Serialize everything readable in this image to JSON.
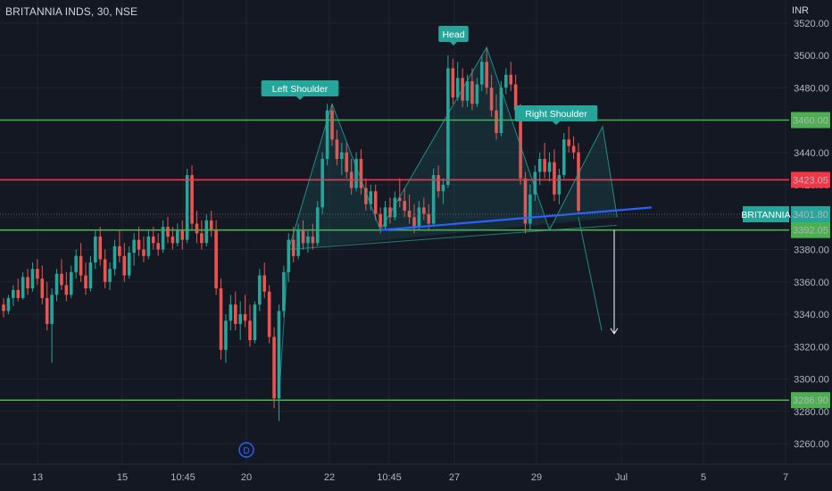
{
  "header": {
    "title": "BRITANNIA INDS, 30, NSE",
    "currency": "INR"
  },
  "colors": {
    "background": "#141823",
    "grid": "#1f2430",
    "up": "#26a69a",
    "down": "#ef5350",
    "support": "#4caf50",
    "resistance": "#f23645",
    "trendline": "#2962ff",
    "pattern": "#26a69a",
    "projection": "#ffffff"
  },
  "chart_data": {
    "type": "candlestick",
    "y_axis": {
      "min": 3250,
      "max": 3525,
      "tick_labels": [
        "3520.00",
        "3500.00",
        "3480.00",
        "3460.00",
        "3440.00",
        "3420.00",
        "3400.00",
        "3380.00",
        "3360.00",
        "3340.00",
        "3320.00",
        "3300.00",
        "3280.00",
        "3260.00"
      ]
    },
    "x_axis": {
      "tick_labels": [
        "13",
        "15",
        "10:45",
        "20",
        "22",
        "10:45",
        "27",
        "29",
        "Jul",
        "5",
        "7"
      ]
    },
    "grid": true,
    "horizontal_levels": [
      {
        "price": 3460.0,
        "label": "3460.00",
        "kind": "support"
      },
      {
        "price": 3423.05,
        "label": "3423.05",
        "kind": "resistance"
      },
      {
        "price": 3392.05,
        "label": "3392.05",
        "kind": "support"
      },
      {
        "price": 3286.9,
        "label": "3286.90",
        "kind": "support"
      }
    ],
    "last_price": {
      "symbol": "BRITANNIA",
      "value": "3401.80",
      "price": 3401.8
    },
    "pattern": {
      "name": "head-and-shoulders",
      "points": [
        {
          "label": "Left Shoulder",
          "price": 3470
        },
        {
          "label": "Head",
          "price": 3505
        },
        {
          "label": "Right Shoulder",
          "price": 3456
        }
      ]
    },
    "neckline": {
      "from_price": 3392,
      "to_price": 3406
    },
    "projection_target": 3328,
    "marker": "D",
    "candles_ohlc": [
      [
        3346,
        3350,
        3338,
        3342
      ],
      [
        3342,
        3352,
        3340,
        3350
      ],
      [
        3350,
        3358,
        3345,
        3355
      ],
      [
        3355,
        3362,
        3348,
        3350
      ],
      [
        3350,
        3366,
        3349,
        3363
      ],
      [
        3363,
        3368,
        3352,
        3356
      ],
      [
        3356,
        3372,
        3354,
        3368
      ],
      [
        3368,
        3374,
        3358,
        3362
      ],
      [
        3362,
        3370,
        3346,
        3350
      ],
      [
        3350,
        3360,
        3330,
        3334
      ],
      [
        3334,
        3356,
        3310,
        3352
      ],
      [
        3352,
        3368,
        3348,
        3365
      ],
      [
        3365,
        3374,
        3355,
        3358
      ],
      [
        3358,
        3366,
        3348,
        3352
      ],
      [
        3352,
        3370,
        3350,
        3366
      ],
      [
        3366,
        3380,
        3362,
        3376
      ],
      [
        3376,
        3384,
        3360,
        3364
      ],
      [
        3364,
        3372,
        3352,
        3356
      ],
      [
        3356,
        3376,
        3354,
        3372
      ],
      [
        3372,
        3392,
        3368,
        3388
      ],
      [
        3388,
        3394,
        3370,
        3374
      ],
      [
        3374,
        3380,
        3356,
        3360
      ],
      [
        3360,
        3372,
        3355,
        3368
      ],
      [
        3368,
        3386,
        3364,
        3382
      ],
      [
        3382,
        3392,
        3372,
        3376
      ],
      [
        3376,
        3384,
        3360,
        3364
      ],
      [
        3364,
        3382,
        3362,
        3378
      ],
      [
        3378,
        3390,
        3370,
        3386
      ],
      [
        3386,
        3394,
        3376,
        3380
      ],
      [
        3380,
        3388,
        3372,
        3376
      ],
      [
        3376,
        3392,
        3374,
        3388
      ],
      [
        3388,
        3394,
        3380,
        3384
      ],
      [
        3384,
        3390,
        3376,
        3380
      ],
      [
        3380,
        3398,
        3378,
        3394
      ],
      [
        3394,
        3400,
        3384,
        3388
      ],
      [
        3388,
        3394,
        3380,
        3384
      ],
      [
        3384,
        3396,
        3382,
        3392
      ],
      [
        3392,
        3398,
        3380,
        3386
      ],
      [
        3386,
        3430,
        3384,
        3426
      ],
      [
        3426,
        3432,
        3392,
        3396
      ],
      [
        3396,
        3404,
        3384,
        3390
      ],
      [
        3390,
        3398,
        3380,
        3384
      ],
      [
        3384,
        3402,
        3382,
        3398
      ],
      [
        3398,
        3404,
        3388,
        3392
      ],
      [
        3392,
        3398,
        3352,
        3356
      ],
      [
        3356,
        3362,
        3312,
        3318
      ],
      [
        3318,
        3340,
        3310,
        3336
      ],
      [
        3336,
        3352,
        3330,
        3346
      ],
      [
        3346,
        3354,
        3330,
        3334
      ],
      [
        3334,
        3348,
        3324,
        3340
      ],
      [
        3340,
        3352,
        3332,
        3336
      ],
      [
        3336,
        3346,
        3320,
        3324
      ],
      [
        3324,
        3348,
        3322,
        3346
      ],
      [
        3346,
        3368,
        3342,
        3364
      ],
      [
        3364,
        3372,
        3350,
        3354
      ],
      [
        3354,
        3358,
        3322,
        3326
      ],
      [
        3326,
        3332,
        3282,
        3288
      ],
      [
        3288,
        3346,
        3274,
        3342
      ],
      [
        3342,
        3370,
        3338,
        3366
      ],
      [
        3366,
        3390,
        3360,
        3386
      ],
      [
        3386,
        3394,
        3372,
        3376
      ],
      [
        3376,
        3396,
        3374,
        3392
      ],
      [
        3392,
        3398,
        3380,
        3384
      ],
      [
        3384,
        3392,
        3378,
        3388
      ],
      [
        3388,
        3396,
        3380,
        3384
      ],
      [
        3384,
        3410,
        3382,
        3406
      ],
      [
        3406,
        3440,
        3402,
        3436
      ],
      [
        3436,
        3470,
        3432,
        3466
      ],
      [
        3466,
        3470,
        3444,
        3448
      ],
      [
        3448,
        3454,
        3432,
        3436
      ],
      [
        3436,
        3446,
        3426,
        3440
      ],
      [
        3440,
        3446,
        3424,
        3428
      ],
      [
        3428,
        3436,
        3414,
        3418
      ],
      [
        3418,
        3440,
        3416,
        3436
      ],
      [
        3436,
        3442,
        3414,
        3418
      ],
      [
        3418,
        3424,
        3404,
        3408
      ],
      [
        3408,
        3420,
        3404,
        3416
      ],
      [
        3416,
        3420,
        3398,
        3402
      ],
      [
        3402,
        3406,
        3390,
        3394
      ],
      [
        3394,
        3410,
        3392,
        3406
      ],
      [
        3406,
        3412,
        3396,
        3400
      ],
      [
        3400,
        3416,
        3398,
        3412
      ],
      [
        3412,
        3424,
        3406,
        3410
      ],
      [
        3410,
        3418,
        3400,
        3404
      ],
      [
        3404,
        3414,
        3396,
        3400
      ],
      [
        3400,
        3408,
        3390,
        3394
      ],
      [
        3394,
        3410,
        3392,
        3406
      ],
      [
        3406,
        3412,
        3398,
        3402
      ],
      [
        3402,
        3408,
        3392,
        3396
      ],
      [
        3396,
        3430,
        3394,
        3426
      ],
      [
        3426,
        3432,
        3412,
        3416
      ],
      [
        3416,
        3424,
        3408,
        3420
      ],
      [
        3420,
        3500,
        3418,
        3492
      ],
      [
        3492,
        3498,
        3470,
        3474
      ],
      [
        3474,
        3496,
        3472,
        3486
      ],
      [
        3486,
        3492,
        3468,
        3472
      ],
      [
        3472,
        3488,
        3468,
        3484
      ],
      [
        3484,
        3492,
        3466,
        3470
      ],
      [
        3470,
        3486,
        3468,
        3482
      ],
      [
        3482,
        3500,
        3478,
        3496
      ],
      [
        3496,
        3505,
        3476,
        3480
      ],
      [
        3480,
        3488,
        3462,
        3466
      ],
      [
        3466,
        3476,
        3448,
        3452
      ],
      [
        3452,
        3484,
        3450,
        3480
      ],
      [
        3480,
        3492,
        3476,
        3488
      ],
      [
        3488,
        3496,
        3478,
        3482
      ],
      [
        3482,
        3488,
        3462,
        3466
      ],
      [
        3466,
        3470,
        3420,
        3424
      ],
      [
        3424,
        3428,
        3390,
        3396
      ],
      [
        3396,
        3420,
        3392,
        3414
      ],
      [
        3414,
        3432,
        3410,
        3428
      ],
      [
        3428,
        3440,
        3420,
        3436
      ],
      [
        3436,
        3446,
        3424,
        3428
      ],
      [
        3428,
        3440,
        3422,
        3434
      ],
      [
        3434,
        3442,
        3410,
        3414
      ],
      [
        3414,
        3430,
        3408,
        3426
      ],
      [
        3426,
        3452,
        3424,
        3448
      ],
      [
        3448,
        3456,
        3440,
        3444
      ],
      [
        3444,
        3450,
        3436,
        3440
      ],
      [
        3440,
        3446,
        3402,
        3404
      ]
    ]
  }
}
